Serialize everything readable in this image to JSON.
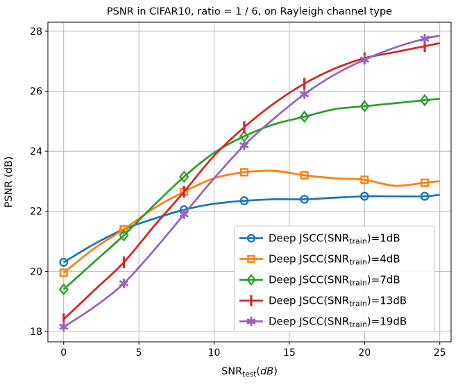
{
  "figure": {
    "background": "#ffffff"
  },
  "chart_data": {
    "type": "line",
    "title": "PSNR in CIFAR10, ratio = 1 / 6, on Rayleigh channel type",
    "ylabel": "PSNR (dB)",
    "xlabel_parts": {
      "main": "SNR",
      "sub": "test",
      "paren_open": "(",
      "italic_unit": "dB",
      "paren_close": ")"
    },
    "xlim": [
      -1.05,
      25.75
    ],
    "ylim": [
      17.65,
      28.3
    ],
    "xticks": [
      0,
      5,
      10,
      15,
      20,
      25
    ],
    "yticks": [
      18,
      20,
      22,
      24,
      26,
      28
    ],
    "grid": true,
    "grid_color": "#b0b0b0",
    "legend_position": "lower right",
    "marker_x": [
      0,
      4,
      8,
      12,
      16,
      20,
      24
    ],
    "x": [
      0,
      2,
      4,
      6,
      8,
      10,
      12,
      14,
      16,
      18,
      20,
      22,
      24,
      25
    ],
    "series": [
      {
        "label_prefix": "Deep JSCC(SNR",
        "label_sub": "train",
        "label_suffix": ")=1dB",
        "color": "#1f77b4",
        "marker": "circle",
        "y": [
          20.3,
          20.9,
          21.4,
          21.75,
          22.05,
          22.25,
          22.35,
          22.4,
          22.4,
          22.45,
          22.5,
          22.5,
          22.5,
          22.55
        ]
      },
      {
        "label_prefix": "Deep JSCC(SNR",
        "label_sub": "train",
        "label_suffix": ")=4dB",
        "color": "#ff7f0e",
        "marker": "square",
        "y": [
          19.95,
          20.75,
          21.4,
          22.1,
          22.65,
          23.1,
          23.3,
          23.35,
          23.2,
          23.1,
          23.05,
          22.85,
          22.95,
          23.0
        ]
      },
      {
        "label_prefix": "Deep JSCC(SNR",
        "label_sub": "train",
        "label_suffix": ")=7dB",
        "color": "#2ca02c",
        "marker": "diamond",
        "y": [
          19.4,
          20.3,
          21.2,
          22.2,
          23.15,
          23.95,
          24.5,
          24.9,
          25.15,
          25.4,
          25.5,
          25.6,
          25.7,
          25.75
        ]
      },
      {
        "label_prefix": "Deep JSCC(SNR",
        "label_sub": "train",
        "label_suffix": ")=13dB",
        "color": "#d62728",
        "marker": "vline",
        "y": [
          18.4,
          19.35,
          20.3,
          21.5,
          22.65,
          23.85,
          24.8,
          25.6,
          26.25,
          26.75,
          27.1,
          27.3,
          27.5,
          27.6
        ]
      },
      {
        "label_prefix": "Deep JSCC(SNR",
        "label_sub": "train",
        "label_suffix": ")=19dB",
        "color": "#9467bd",
        "marker": "star",
        "y": [
          18.15,
          18.8,
          19.6,
          20.7,
          21.9,
          23.1,
          24.2,
          25.1,
          25.9,
          26.55,
          27.05,
          27.45,
          27.75,
          27.85
        ]
      }
    ]
  }
}
